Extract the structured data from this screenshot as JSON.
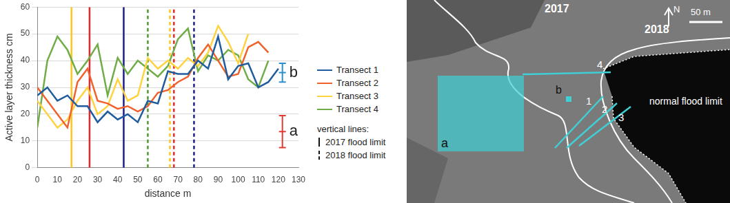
{
  "chart_data": {
    "type": "line",
    "x_label": "distance m",
    "y_label": "Active layer thickness cm",
    "xlim": [
      0,
      130
    ],
    "xticks": [
      0,
      10,
      20,
      30,
      40,
      50,
      60,
      70,
      80,
      90,
      100,
      110,
      120,
      130
    ],
    "ylim": [
      0,
      60
    ],
    "yticks": [
      0,
      10,
      20,
      30,
      40,
      50,
      60
    ],
    "grid": "y",
    "x": [
      0,
      5,
      10,
      15,
      20,
      25,
      30,
      35,
      40,
      45,
      50,
      55,
      60,
      65,
      70,
      75,
      80,
      85,
      90,
      95,
      100,
      105,
      110,
      115,
      120
    ],
    "series": [
      {
        "name": "Transect 1",
        "color": "#1f5c9e",
        "flood_limit_color": "#1a1f8a",
        "values": [
          27,
          30,
          25,
          27,
          23,
          23,
          17,
          21,
          18,
          20,
          17,
          25,
          24,
          36,
          35,
          35,
          40,
          37,
          49,
          33,
          38,
          39,
          30,
          32,
          37
        ],
        "flood_limits": [
          43,
          78
        ]
      },
      {
        "name": "Transect 2",
        "color": "#f0622d",
        "flood_limit_color": "#e8272a",
        "values": [
          30,
          25,
          20,
          15,
          32,
          37,
          25,
          24,
          22,
          23,
          21,
          23,
          28,
          29,
          32,
          34,
          41,
          46,
          40,
          34,
          35,
          45,
          47,
          43,
          null
        ],
        "flood_limits": [
          26,
          68
        ]
      },
      {
        "name": "Transect 3",
        "color": "#ffd23f",
        "flood_limit_color": "#ffc61a",
        "values": [
          25,
          20,
          15,
          18,
          25,
          30,
          20,
          23,
          33,
          25,
          27,
          41,
          37,
          40,
          37,
          41,
          38,
          43,
          53,
          47,
          39,
          50,
          null,
          null,
          null
        ],
        "flood_limits": [
          17,
          66
        ]
      },
      {
        "name": "Transect 4",
        "color": "#70ad47",
        "flood_limit_color": "#4f9a2f",
        "values": [
          15,
          40,
          49,
          44,
          35,
          40,
          46,
          27,
          41,
          35,
          40,
          37,
          34,
          38,
          48,
          52,
          36,
          42,
          40,
          44,
          42,
          33,
          30,
          40,
          null
        ],
        "flood_limits": [
          null,
          55
        ]
      }
    ],
    "limit_legend": {
      "title": "vertical lines:",
      "items": [
        {
          "label": "2017 flood limit",
          "line_style": "solid"
        },
        {
          "label": "2018 flood limit",
          "line_style": "dashed"
        }
      ]
    },
    "error_bars": [
      {
        "label": "a",
        "x": 122,
        "value": 13.5,
        "low": 7.5,
        "high": 19.5,
        "color": "#e03a31"
      },
      {
        "label": "b",
        "x": 122,
        "value": 35.5,
        "low": 32,
        "high": 39,
        "color": "#2a8fd0"
      }
    ]
  },
  "map": {
    "boundaries": [
      "2017",
      "2018",
      "normal flood limit"
    ],
    "areas": [
      "a",
      "b"
    ],
    "transects": [
      "1",
      "2",
      "3",
      "4"
    ],
    "scale": "50 m",
    "north": "N"
  }
}
